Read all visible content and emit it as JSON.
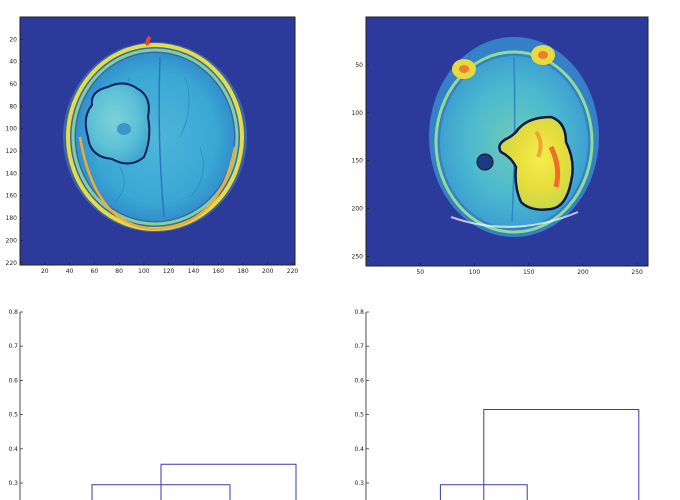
{
  "chart_data": [
    {
      "type": "heatmap",
      "title": "",
      "xlabel": "",
      "ylabel": "",
      "xlim": [
        0,
        222
      ],
      "ylim": [
        222,
        0
      ],
      "x_ticks": [
        "20",
        "40",
        "60",
        "80",
        "100",
        "120",
        "140",
        "160",
        "180",
        "200",
        "220"
      ],
      "y_ticks": [
        "20",
        "40",
        "60",
        "80",
        "100",
        "120",
        "140",
        "160",
        "180",
        "200",
        "220"
      ],
      "colormap": "jet",
      "contour": "dark blue outline around left-hemisphere lesion"
    },
    {
      "type": "heatmap",
      "title": "",
      "xlabel": "",
      "ylabel": "",
      "xlim": [
        0,
        260
      ],
      "ylim": [
        260,
        0
      ],
      "x_ticks": [
        "50",
        "100",
        "150",
        "200",
        "250"
      ],
      "y_ticks": [
        "50",
        "100",
        "150",
        "200",
        "250"
      ],
      "colormap": "jet",
      "contour": "dark blue outline around right-posterior lesion"
    },
    {
      "type": "dendrogram",
      "title": "",
      "ylim": [
        0,
        0.8
      ],
      "y_ticks": [
        "0.3",
        "0.4",
        "0.5",
        "0.6",
        "0.7",
        "0.8"
      ],
      "links": [
        {
          "left_x": 0.24,
          "right_x": 0.7,
          "height": 0.295
        },
        {
          "left_x": 0.47,
          "right_x": 0.92,
          "height": 0.355
        }
      ],
      "line_color": "#3a3aa8"
    },
    {
      "type": "dendrogram",
      "title": "",
      "ylim": [
        0,
        0.8
      ],
      "y_ticks": [
        "0.3",
        "0.4",
        "0.5",
        "0.6",
        "0.7",
        "0.8"
      ],
      "links": [
        {
          "left_x": 0.24,
          "right_x": 0.52,
          "height": 0.295
        },
        {
          "left_x": 0.38,
          "right_x": 0.88,
          "height": 0.515
        }
      ],
      "line_color": "#3a3aa8"
    }
  ]
}
